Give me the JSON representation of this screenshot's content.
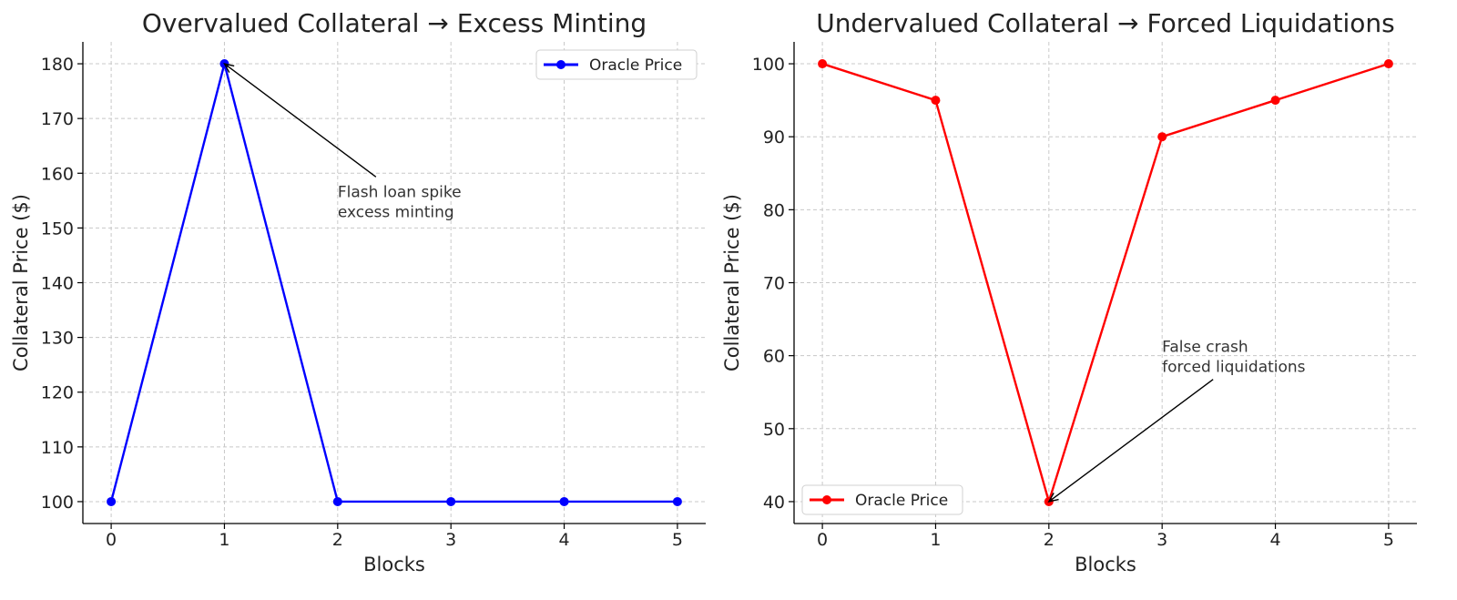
{
  "chart_data": [
    {
      "type": "line",
      "title": "Overvalued Collateral → Excess Minting",
      "xlabel": "Blocks",
      "ylabel": "Collateral Price ($)",
      "x": [
        0,
        1,
        2,
        3,
        4,
        5
      ],
      "xticks": [
        "0",
        "1",
        "2",
        "3",
        "4",
        "5"
      ],
      "yticks": [
        "100",
        "110",
        "120",
        "130",
        "140",
        "150",
        "160",
        "170",
        "180"
      ],
      "xlim": [
        -0.25,
        5.25
      ],
      "ylim": [
        96,
        184
      ],
      "grid": true,
      "legend_position": "upper-right",
      "series": [
        {
          "name": "Oracle Price",
          "color": "#0000ff",
          "values": [
            100,
            180,
            100,
            100,
            100,
            100
          ]
        }
      ],
      "annotation": {
        "lines": [
          "Flash loan spike",
          "excess minting"
        ],
        "point": [
          1,
          180
        ],
        "text_at": [
          2,
          155
        ]
      }
    },
    {
      "type": "line",
      "title": "Undervalued Collateral → Forced Liquidations",
      "xlabel": "Blocks",
      "ylabel": "Collateral Price ($)",
      "x": [
        0,
        1,
        2,
        3,
        4,
        5
      ],
      "xticks": [
        "0",
        "1",
        "2",
        "3",
        "4",
        "5"
      ],
      "yticks": [
        "40",
        "50",
        "60",
        "70",
        "80",
        "90",
        "100"
      ],
      "xlim": [
        -0.25,
        5.25
      ],
      "ylim": [
        37,
        103
      ],
      "grid": true,
      "legend_position": "lower-left",
      "series": [
        {
          "name": "Oracle Price",
          "color": "#ff0000",
          "values": [
            100,
            95,
            40,
            90,
            95,
            100
          ]
        }
      ],
      "annotation": {
        "lines": [
          "False crash",
          "forced liquidations"
        ],
        "point": [
          2,
          40
        ],
        "text_at": [
          3,
          60
        ]
      }
    }
  ]
}
